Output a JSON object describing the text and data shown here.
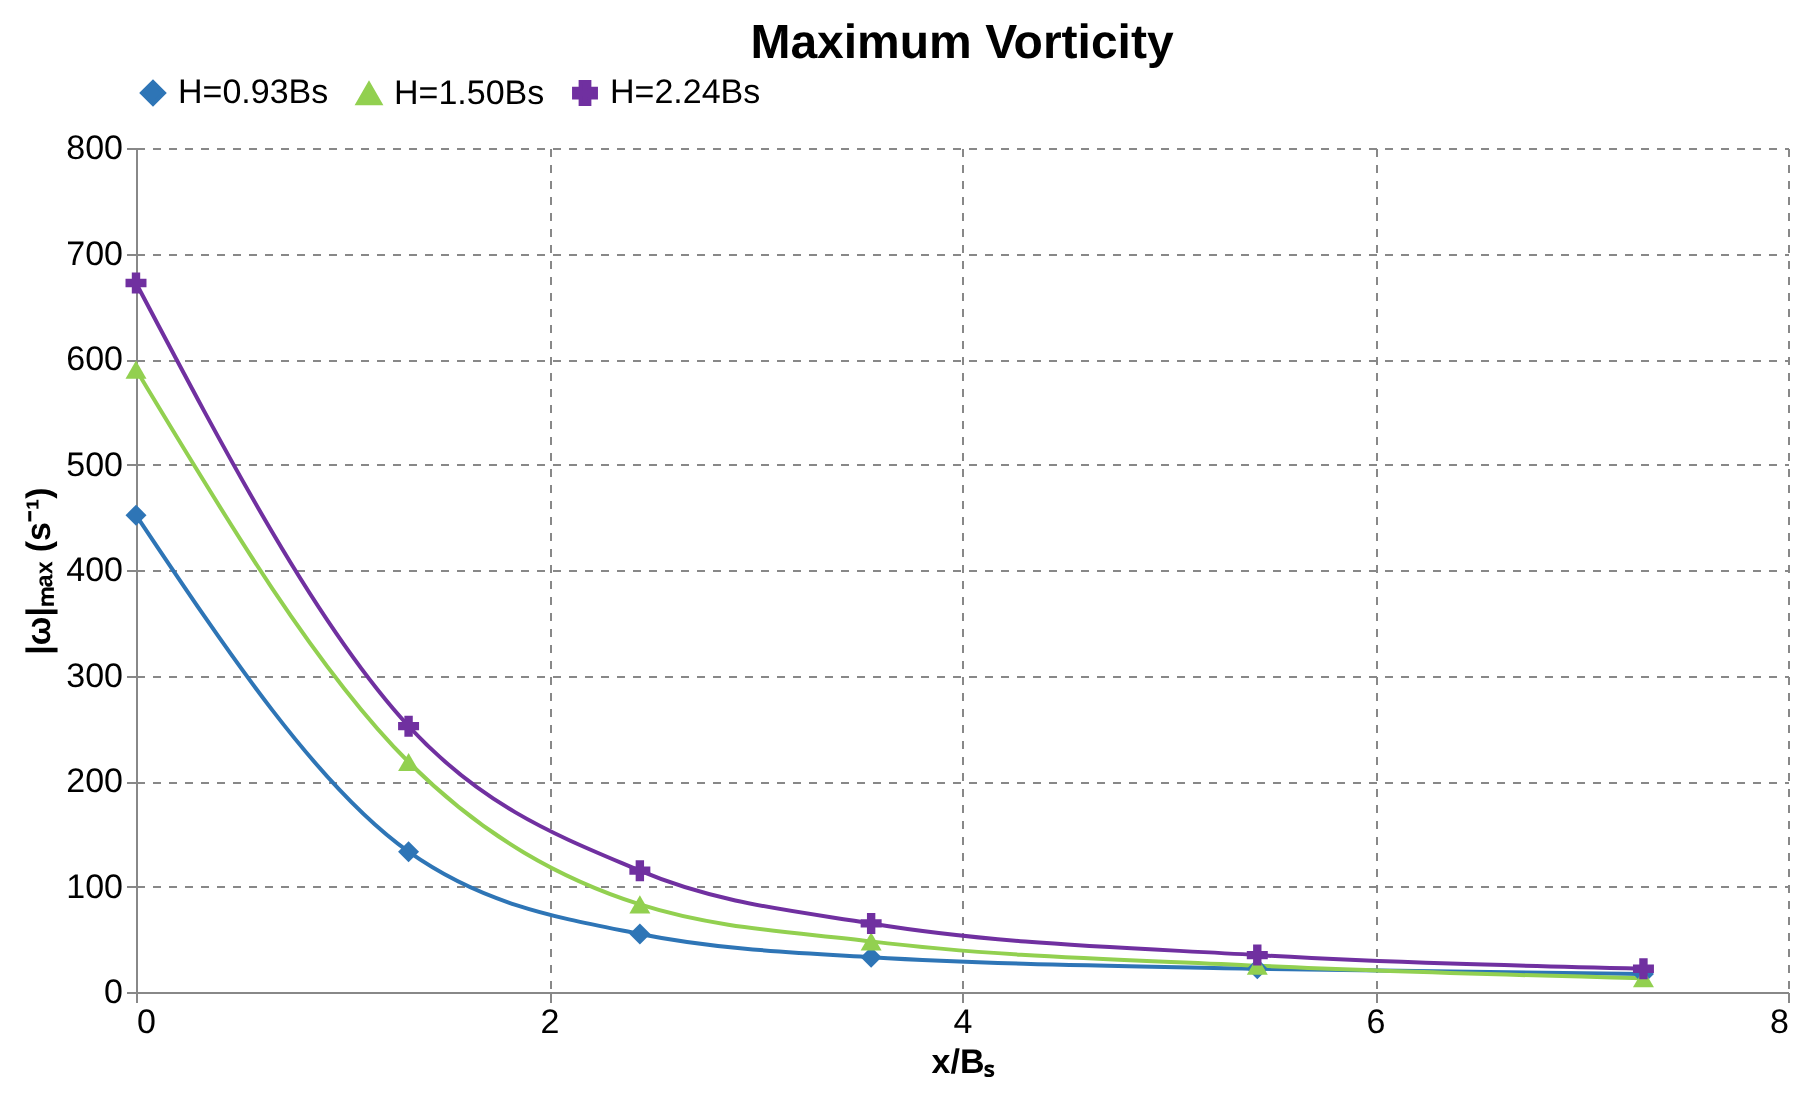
{
  "chart_data": {
    "type": "line",
    "title": "Maximum Vorticity",
    "xlabel": "x/Bₛ",
    "ylabel": "|ω|ₘₐₓ (s⁻¹)",
    "x": [
      0,
      1.32,
      2.44,
      3.56,
      5.43,
      7.3
    ],
    "series": [
      {
        "name": "H=0.93Bs",
        "color": "#2e75b6",
        "marker": "diamond",
        "values": [
          452,
          133,
          55,
          33,
          22,
          17
        ]
      },
      {
        "name": "H=1.50Bs",
        "color": "#92d050",
        "marker": "triangle",
        "values": [
          590,
          218,
          83,
          48,
          25,
          13
        ]
      },
      {
        "name": "H=2.24Bs",
        "color": "#7030a0",
        "marker": "cross",
        "values": [
          672,
          252,
          115,
          65,
          35,
          22
        ]
      }
    ],
    "xlim": [
      0,
      8
    ],
    "xticks": [
      0,
      2,
      4,
      6,
      8
    ],
    "ylim": [
      0,
      800
    ],
    "yticks": [
      0,
      100,
      200,
      300,
      400,
      500,
      600,
      700,
      800
    ],
    "grid": true,
    "legend": "top",
    "line_style": "solid"
  }
}
